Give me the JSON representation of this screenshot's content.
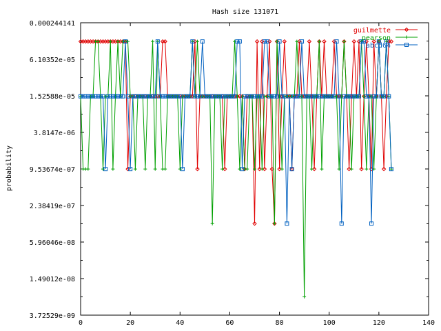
{
  "chart_data": {
    "type": "line",
    "title": "Hash size 131071",
    "xlabel": "",
    "ylabel": "probability",
    "xlim": [
      0,
      140
    ],
    "x_ticks": [
      0,
      20,
      40,
      60,
      80,
      100,
      120,
      140
    ],
    "y_scale": "log2",
    "ylim": [
      3.72529e-09,
      0.000244141
    ],
    "y_ticks": [
      {
        "value": 0.000244141,
        "label": "0.000244141"
      },
      {
        "value": 6.10352e-05,
        "label": "6.10352e-05"
      },
      {
        "value": 1.52588e-05,
        "label": "1.52588e-05"
      },
      {
        "value": 3.8147e-06,
        "label": "3.8147e-06"
      },
      {
        "value": 9.53674e-07,
        "label": "9.53674e-07"
      },
      {
        "value": 2.38419e-07,
        "label": "2.38419e-07"
      },
      {
        "value": 5.96046e-08,
        "label": "5.96046e-08"
      },
      {
        "value": 1.49012e-08,
        "label": "1.49012e-08"
      },
      {
        "value": 3.72529e-09,
        "label": "3.72529e-09"
      }
    ],
    "grid": false,
    "legend_position": "top-right",
    "series": [
      {
        "name": "guilmette",
        "color": "#e00000",
        "marker": "diamond",
        "x": [
          0,
          1,
          2,
          3,
          4,
          5,
          6,
          7,
          8,
          9,
          10,
          11,
          12,
          13,
          14,
          15,
          16,
          17,
          18,
          19,
          20,
          21,
          22,
          23,
          24,
          25,
          26,
          27,
          28,
          29,
          30,
          31,
          32,
          33,
          34,
          35,
          36,
          37,
          38,
          39,
          40,
          41,
          42,
          43,
          44,
          45,
          46,
          47,
          48,
          49,
          50,
          51,
          52,
          53,
          54,
          55,
          56,
          57,
          58,
          59,
          60,
          61,
          62,
          63,
          64,
          65,
          66,
          67,
          68,
          69,
          70,
          71,
          72,
          73,
          74,
          75,
          76,
          77,
          78,
          79,
          80,
          81,
          82,
          83,
          84,
          85,
          86,
          87,
          88,
          89,
          90,
          91,
          92,
          93,
          94,
          95,
          96,
          97,
          98,
          99,
          100,
          101,
          102,
          103,
          104,
          105,
          106,
          107,
          108,
          109,
          110,
          111,
          112,
          113,
          114,
          115,
          116,
          117,
          118,
          119,
          120,
          121,
          122,
          123,
          124,
          125
        ],
        "y": [
          0.00012,
          0.00012,
          0.00012,
          0.00012,
          0.00012,
          0.00012,
          0.00012,
          0.00012,
          0.00012,
          0.00012,
          0.00012,
          0.00012,
          0.00012,
          0.00012,
          0.00012,
          0.00012,
          0.00012,
          0.00012,
          0.00012,
          9.5e-07,
          1.5e-05,
          1.5e-05,
          1.5e-05,
          1.5e-05,
          1.5e-05,
          1.5e-05,
          1.5e-05,
          1.5e-05,
          1.5e-05,
          1.5e-05,
          1.5e-05,
          1.5e-05,
          1.5e-05,
          0.00012,
          0.00012,
          1.5e-05,
          1.5e-05,
          1.5e-05,
          1.5e-05,
          1.5e-05,
          1.5e-05,
          1.5e-05,
          1.5e-05,
          1.5e-05,
          1.5e-05,
          1.5e-05,
          0.00012,
          9.5e-07,
          1.5e-05,
          1.5e-05,
          1.5e-05,
          1.5e-05,
          1.5e-05,
          1.5e-05,
          1.5e-05,
          1.5e-05,
          1.5e-05,
          1.5e-05,
          9.5e-07,
          1.5e-05,
          1.5e-05,
          1.5e-05,
          1.5e-05,
          1.5e-05,
          1.5e-05,
          1.5e-05,
          9.5e-07,
          1.5e-05,
          1.5e-05,
          1.5e-05,
          1.2e-07,
          0.00012,
          9.5e-07,
          0.00012,
          9.5e-07,
          1.5e-05,
          0.00012,
          9.5e-07,
          1.2e-07,
          0.00012,
          9.5e-07,
          1.5e-05,
          0.00012,
          1.5e-05,
          1.5e-05,
          9.5e-07,
          1.5e-05,
          1.5e-05,
          0.00012,
          1.5e-05,
          1.5e-05,
          1.5e-05,
          0.00012,
          1.5e-05,
          9.5e-07,
          1.5e-05,
          0.00012,
          1.5e-05,
          0.00012,
          1.5e-05,
          1.5e-05,
          1.5e-05,
          0.00012,
          1.5e-05,
          1.5e-05,
          1.5e-05,
          0.00012,
          1.5e-05,
          9.5e-07,
          1.5e-05,
          0.00012,
          1.5e-05,
          0.00012,
          9.5e-07,
          1.5e-05,
          0.00012,
          1.5e-05,
          9.5e-07,
          0.00012,
          1.5e-05,
          0.00012,
          1.5e-05,
          9.5e-07,
          1.5e-05,
          0.00012,
          0.00012
        ]
      },
      {
        "name": "pearson",
        "color": "#00a000",
        "marker": "plus",
        "x": [
          0,
          1,
          2,
          3,
          4,
          5,
          6,
          7,
          8,
          9,
          10,
          11,
          12,
          13,
          14,
          15,
          16,
          17,
          18,
          19,
          20,
          21,
          22,
          23,
          24,
          25,
          26,
          27,
          28,
          29,
          30,
          31,
          32,
          33,
          34,
          35,
          36,
          37,
          38,
          39,
          40,
          41,
          42,
          43,
          44,
          45,
          46,
          47,
          48,
          49,
          50,
          51,
          52,
          53,
          54,
          55,
          56,
          57,
          58,
          59,
          60,
          61,
          62,
          63,
          64,
          65,
          66,
          67,
          68,
          69,
          70,
          71,
          72,
          73,
          74,
          75,
          76,
          77,
          78,
          79,
          80,
          81,
          82,
          83,
          84,
          85,
          86,
          87,
          88,
          89,
          90,
          91,
          92,
          93,
          94,
          95,
          96,
          97,
          98,
          99,
          100,
          101,
          102,
          103,
          104,
          105,
          106,
          107,
          108,
          109,
          110,
          111,
          112,
          113,
          114,
          115,
          116,
          117,
          118,
          119,
          120,
          121,
          122,
          123,
          124,
          125
        ],
        "y": [
          1.5e-05,
          9.5e-07,
          9.5e-07,
          9.5e-07,
          1.5e-05,
          1.5e-05,
          0.00012,
          0.00012,
          1.5e-05,
          9.5e-07,
          1.5e-05,
          1.5e-05,
          0.00012,
          9.5e-07,
          1.5e-05,
          0.00012,
          1.5e-05,
          0.00012,
          0.00012,
          0.00012,
          1.5e-05,
          1.5e-05,
          9.5e-07,
          1.5e-05,
          1.5e-05,
          1.5e-05,
          9.5e-07,
          1.5e-05,
          1.5e-05,
          0.00012,
          9.5e-07,
          0.00012,
          1.5e-05,
          9.5e-07,
          9.5e-07,
          1.5e-05,
          1.5e-05,
          1.5e-05,
          1.5e-05,
          1.5e-05,
          9.5e-07,
          1.5e-05,
          1.5e-05,
          1.5e-05,
          1.5e-05,
          0.00012,
          1.5e-05,
          0.00012,
          1.5e-05,
          1.5e-05,
          1.5e-05,
          1.5e-05,
          1.5e-05,
          1.2e-07,
          1.5e-05,
          1.5e-05,
          1.5e-05,
          9.5e-07,
          1.5e-05,
          1.5e-05,
          1.5e-05,
          1.5e-05,
          0.00012,
          1.5e-05,
          9.5e-07,
          1.5e-05,
          9.5e-07,
          9.5e-07,
          1.5e-05,
          1.5e-05,
          9.5e-07,
          1.5e-05,
          1.5e-05,
          9.5e-07,
          1.5e-05,
          1.5e-05,
          1.5e-05,
          1.5e-05,
          1.2e-07,
          0.00012,
          1.5e-05,
          9.5e-07,
          1.5e-05,
          1.5e-05,
          1.5e-05,
          1.5e-05,
          1.5e-05,
          0.00012,
          1.5e-05,
          1.5e-05,
          7.5e-09,
          1.5e-05,
          1.5e-05,
          9.5e-07,
          1.5e-05,
          1.5e-05,
          0.00012,
          9.5e-07,
          1.5e-05,
          1.5e-05,
          1.5e-05,
          1.5e-05,
          1.5e-05,
          1.5e-05,
          9.5e-07,
          1.5e-05,
          0.00012,
          1.5e-05,
          1.5e-05,
          9.5e-07,
          1.5e-05,
          1.5e-05,
          1.5e-05,
          0.00012,
          1.5e-05,
          9.5e-07,
          1.5e-05,
          1.5e-05,
          9.5e-07,
          1.5e-05,
          0.00012,
          1.5e-05,
          1.5e-05,
          0.00012,
          1.5e-05,
          9.5e-07
        ]
      },
      {
        "name": "abcd64",
        "color": "#0060c0",
        "marker": "square",
        "x": [
          0,
          1,
          2,
          3,
          4,
          5,
          6,
          7,
          8,
          9,
          10,
          11,
          12,
          13,
          14,
          15,
          16,
          17,
          18,
          19,
          20,
          21,
          22,
          23,
          24,
          25,
          26,
          27,
          28,
          29,
          30,
          31,
          32,
          33,
          34,
          35,
          36,
          37,
          38,
          39,
          40,
          41,
          42,
          43,
          44,
          45,
          46,
          47,
          48,
          49,
          50,
          51,
          52,
          53,
          54,
          55,
          56,
          57,
          58,
          59,
          60,
          61,
          62,
          63,
          64,
          65,
          66,
          67,
          68,
          69,
          70,
          71,
          72,
          73,
          74,
          75,
          76,
          77,
          78,
          79,
          80,
          81,
          82,
          83,
          84,
          85,
          86,
          87,
          88,
          89,
          90,
          91,
          92,
          93,
          94,
          95,
          96,
          97,
          98,
          99,
          100,
          101,
          102,
          103,
          104,
          105,
          106,
          107,
          108,
          109,
          110,
          111,
          112,
          113,
          114,
          115,
          116,
          117,
          118,
          119,
          120,
          121,
          122,
          123,
          124,
          125
        ],
        "y": [
          1.5e-05,
          1.5e-05,
          1.5e-05,
          1.5e-05,
          1.5e-05,
          1.5e-05,
          1.5e-05,
          1.5e-05,
          1.5e-05,
          1.5e-05,
          9.5e-07,
          1.5e-05,
          1.5e-05,
          1.5e-05,
          1.5e-05,
          1.5e-05,
          1.5e-05,
          1.5e-05,
          0.00012,
          1.5e-05,
          9.5e-07,
          1.5e-05,
          1.5e-05,
          1.5e-05,
          1.5e-05,
          1.5e-05,
          1.5e-05,
          1.5e-05,
          1.5e-05,
          1.5e-05,
          1.5e-05,
          0.00012,
          1.5e-05,
          1.5e-05,
          1.5e-05,
          1.5e-05,
          1.5e-05,
          1.5e-05,
          1.5e-05,
          1.5e-05,
          1.5e-05,
          9.5e-07,
          1.5e-05,
          1.5e-05,
          1.5e-05,
          0.00012,
          1.5e-05,
          1.5e-05,
          1.5e-05,
          0.00012,
          1.5e-05,
          1.5e-05,
          1.5e-05,
          1.5e-05,
          1.5e-05,
          1.5e-05,
          1.5e-05,
          1.5e-05,
          1.5e-05,
          1.5e-05,
          1.5e-05,
          1.5e-05,
          1.5e-05,
          0.00012,
          0.00012,
          9.5e-07,
          1.5e-05,
          1.5e-05,
          1.5e-05,
          1.5e-05,
          1.5e-05,
          1.5e-05,
          1.5e-05,
          1.5e-05,
          0.00012,
          0.00012,
          1.5e-05,
          1.5e-05,
          1.5e-05,
          1.5e-05,
          0.00012,
          1.5e-05,
          1.5e-05,
          1.2e-07,
          1.5e-05,
          9.5e-07,
          1.5e-05,
          1.5e-05,
          1.5e-05,
          0.00012,
          1.5e-05,
          1.5e-05,
          1.5e-05,
          1.5e-05,
          1.5e-05,
          1.5e-05,
          1.5e-05,
          1.5e-05,
          1.5e-05,
          1.5e-05,
          1.5e-05,
          1.5e-05,
          1.5e-05,
          0.00012,
          1.5e-05,
          1.2e-07,
          1.5e-05,
          1.5e-05,
          1.5e-05,
          1.5e-05,
          1.5e-05,
          1.5e-05,
          1.5e-05,
          0.00012,
          0.00012,
          1.5e-05,
          1.5e-05,
          1.2e-07,
          1.5e-05,
          1.5e-05,
          0.00012,
          1.5e-05,
          1.5e-05,
          0.00012,
          1.5e-05,
          9.5e-07
        ]
      }
    ]
  }
}
